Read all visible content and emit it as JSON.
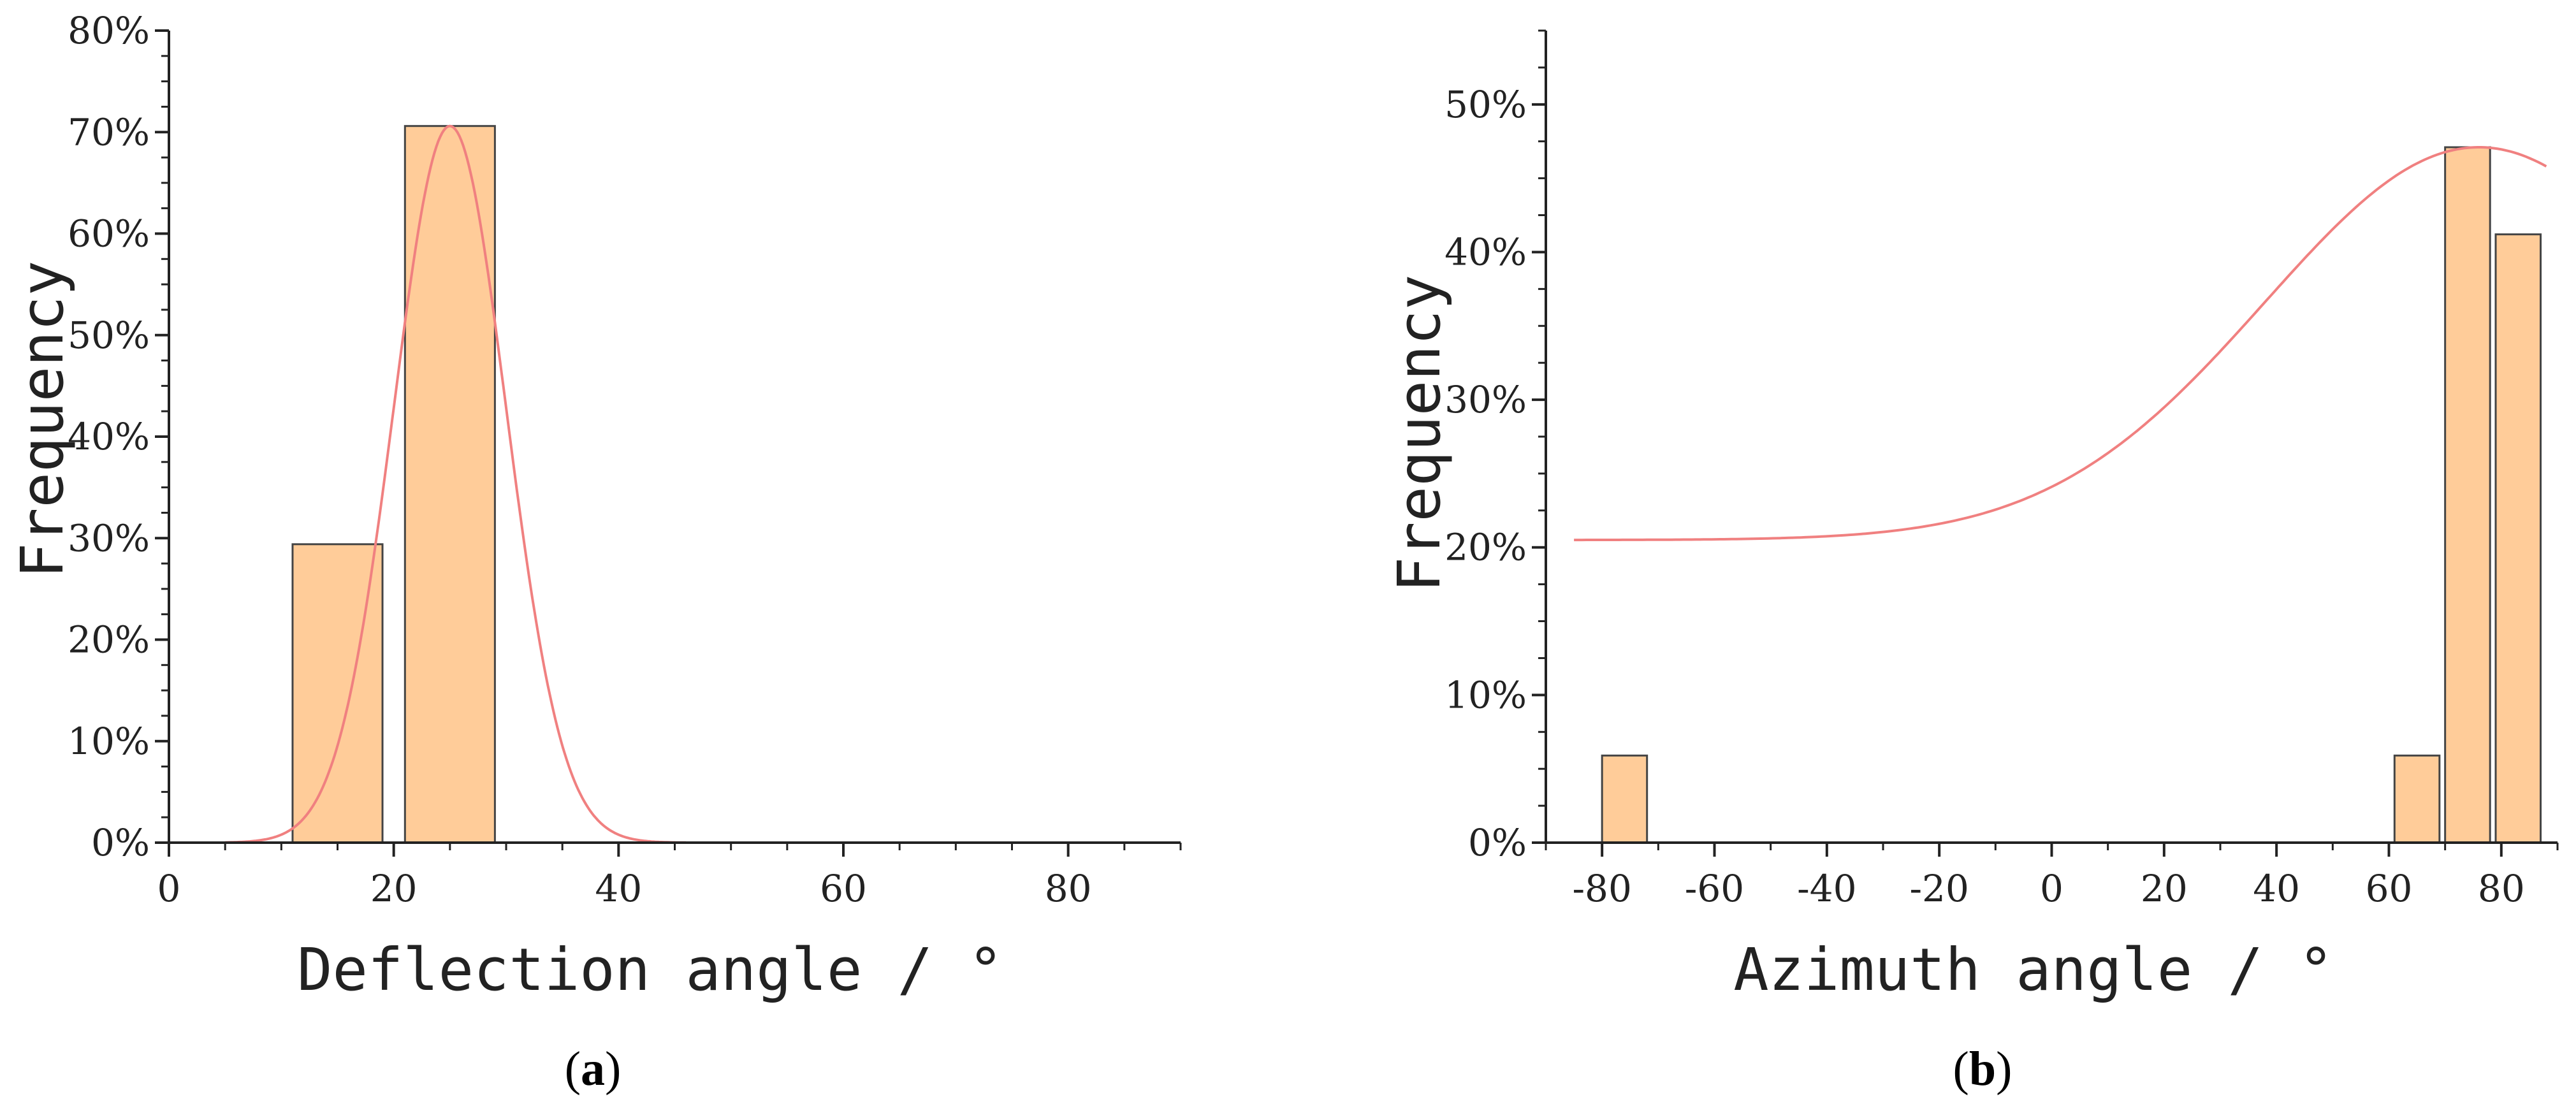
{
  "chart_data": [
    {
      "panel": "a",
      "panel_label": {
        "open": "(",
        "letter": "a",
        "close": ")"
      },
      "type": "bar",
      "xlabel": "Deflection angle / °",
      "ylabel": "Frequency",
      "xlim": [
        0,
        90
      ],
      "ylim": [
        0,
        0.8
      ],
      "xticks": [
        0,
        20,
        40,
        60,
        80
      ],
      "xtick_labels": [
        "0",
        "20",
        "40",
        "60",
        "80"
      ],
      "yticks": [
        0,
        0.1,
        0.2,
        0.3,
        0.4,
        0.5,
        0.6,
        0.7,
        0.8
      ],
      "ytick_labels": [
        "0%",
        "10%",
        "20%",
        "30%",
        "40%",
        "50%",
        "60%",
        "70%",
        "80%"
      ],
      "bars": [
        {
          "x0": 11,
          "x1": 19,
          "value": 0.294
        },
        {
          "x0": 21,
          "x1": 29,
          "value": 0.706
        }
      ],
      "fit_curve": {
        "type": "normal",
        "mean": 25,
        "sd": 5,
        "peak": 0.706,
        "x_range": [
          5,
          46
        ]
      },
      "bar_color": "#ffcc99",
      "bar_edge": "#444444",
      "curve_color": "#f08080"
    },
    {
      "panel": "b",
      "panel_label": {
        "open": "(",
        "letter": "b",
        "close": ")"
      },
      "type": "bar",
      "xlabel": "Azimuth angle / °",
      "ylabel": "Frequency",
      "xlim": [
        -90,
        90
      ],
      "ylim": [
        0,
        0.55
      ],
      "xticks": [
        -80,
        -60,
        -40,
        -20,
        0,
        20,
        40,
        60,
        80
      ],
      "xtick_labels": [
        "-80",
        "-60",
        "-40",
        "-20",
        "0",
        "20",
        "40",
        "60",
        "80"
      ],
      "yticks": [
        0,
        0.1,
        0.2,
        0.3,
        0.4,
        0.5
      ],
      "ytick_labels": [
        "0%",
        "10%",
        "20%",
        "30%",
        "40%",
        "50%"
      ],
      "bars": [
        {
          "x0": -80,
          "x1": -72,
          "value": 0.059
        },
        {
          "x0": 61,
          "x1": 69,
          "value": 0.059
        },
        {
          "x0": 70,
          "x1": 78,
          "value": 0.471
        },
        {
          "x0": 79,
          "x1": 87,
          "value": 0.412
        }
      ],
      "fit_curve": {
        "type": "offset-gaussian",
        "base": 0.205,
        "amplitude": 0.266,
        "mean": 76,
        "sd": 38,
        "x_range": [
          -85,
          88
        ]
      },
      "bar_color": "#ffcc99",
      "bar_edge": "#444444",
      "curve_color": "#f08080"
    }
  ]
}
